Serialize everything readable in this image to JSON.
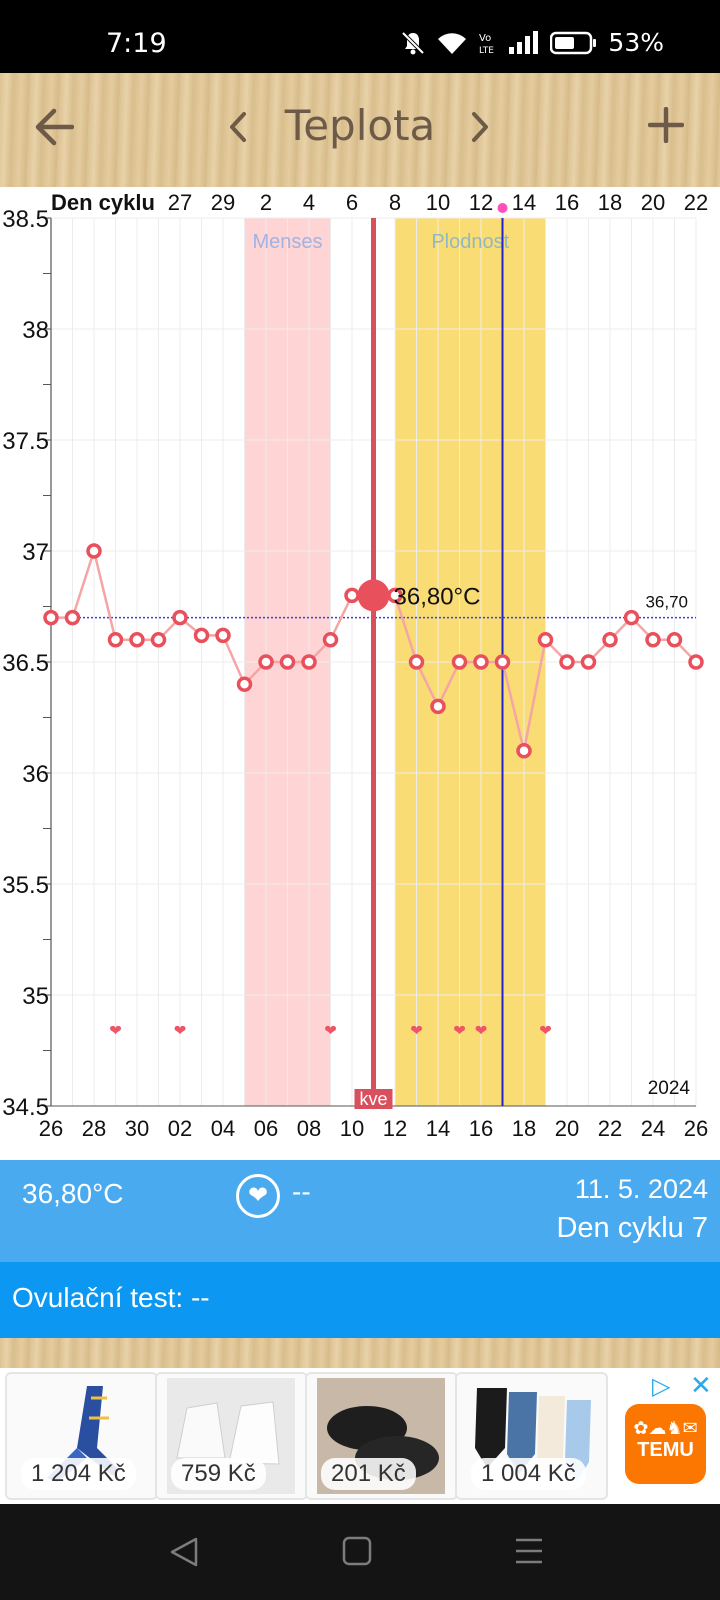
{
  "status_bar": {
    "time": "7:19",
    "battery": "53%",
    "icons": [
      "mute-icon",
      "wifi-icon",
      "volte-icon",
      "signal-icon",
      "battery-icon"
    ]
  },
  "app_bar": {
    "title": "Teplota",
    "back_icon": "arrow-left-icon",
    "prev_icon": "chevron-left-icon",
    "next_icon": "chevron-right-icon",
    "add_icon": "plus-icon"
  },
  "chart_data": {
    "type": "line",
    "top_axis_label": "Den cyklu",
    "top_ticks": [
      "27",
      "29",
      "2",
      "4",
      "6",
      "8",
      "10",
      "12",
      "14",
      "16",
      "18",
      "20",
      "22"
    ],
    "bottom_ticks": [
      "26",
      "28",
      "30",
      "02",
      "04",
      "06",
      "08",
      "10",
      "12",
      "14",
      "16",
      "18",
      "20",
      "22",
      "24",
      "26"
    ],
    "y_ticks": [
      "38.5",
      "38",
      "37.5",
      "37",
      "36.5",
      "36",
      "35.5",
      "35",
      "34.5"
    ],
    "ylim": [
      34.5,
      38.5
    ],
    "day_range": [
      0,
      30
    ],
    "bands": [
      {
        "label": "Menses",
        "start": 9,
        "end": 13,
        "color": "#ffd4d4",
        "label_color": "#9fb3e4"
      },
      {
        "label": "Plodnost",
        "start": 16,
        "end": 23,
        "color": "#fadc75",
        "label_color": "#8fb9c4"
      }
    ],
    "selected": {
      "day": 15,
      "label": "36,80°C",
      "tag": "kve"
    },
    "ovulation_day": 21,
    "coverline": {
      "value": 36.7,
      "label": "36,70"
    },
    "x": [
      0,
      1,
      2,
      3,
      4,
      5,
      6,
      7,
      8,
      9,
      10,
      11,
      12,
      13,
      14,
      15,
      16,
      17,
      18,
      19,
      20,
      21,
      22,
      23,
      24,
      25,
      26,
      27,
      28,
      29,
      30
    ],
    "values": [
      36.7,
      36.7,
      37.0,
      36.6,
      36.6,
      36.6,
      36.7,
      36.62,
      36.62,
      36.4,
      36.5,
      36.5,
      36.5,
      36.6,
      36.8,
      36.8,
      36.8,
      36.5,
      36.3,
      36.5,
      36.5,
      36.5,
      36.1,
      36.6,
      36.5,
      36.5,
      36.6,
      36.7,
      36.6,
      36.6,
      36.5
    ],
    "hearts": [
      3,
      6,
      13,
      17,
      19,
      20,
      23
    ],
    "year_label": "2024",
    "colors": {
      "line": "#f5a5a5",
      "marker": "#e8505c",
      "selected_line": "#d94f5c",
      "ovulation_line": "#2222c8",
      "coverline": "#3d3de0"
    }
  },
  "info_panel": {
    "temperature": "36,80°C",
    "intercourse": "--",
    "date": "11. 5. 2024",
    "cycle_day": "Den cyklu 7",
    "ovulation_test": "Ovulační test: --"
  },
  "ad": {
    "prices": [
      "1 204 Kč",
      "759 Kč",
      "201 Kč",
      "1 004 Kč"
    ],
    "brand": "TEMU"
  },
  "nav_bar": {
    "icons": [
      "back-triangle-icon",
      "home-square-icon",
      "menu-lines-icon"
    ]
  }
}
